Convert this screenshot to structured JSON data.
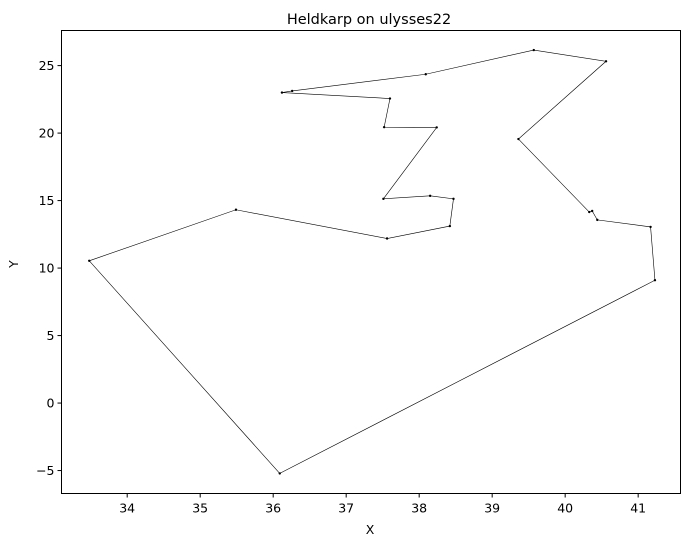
{
  "chart_data": {
    "type": "line",
    "title": "Heldkarp on ulysses22",
    "xlabel": "X",
    "ylabel": "Y",
    "xlim": [
      33.1,
      41.58
    ],
    "ylim": [
      -6.7,
      27.6
    ],
    "xticks": [
      34,
      35,
      36,
      37,
      38,
      39,
      40,
      41
    ],
    "yticks": [
      -5,
      0,
      5,
      10,
      15,
      20,
      25
    ],
    "grid": false,
    "legend": "none",
    "line_color": "#000000",
    "marker": "point",
    "series": [
      {
        "x": [
          36.09,
          41.23,
          41.17,
          40.44,
          40.37,
          40.33,
          39.36,
          40.56,
          39.57,
          38.09,
          36.26,
          36.12,
          37.6,
          37.52,
          38.24,
          37.51,
          38.15,
          38.47,
          38.42,
          37.56,
          35.49,
          33.48,
          36.09
        ],
        "y": [
          -5.21,
          9.1,
          13.05,
          13.57,
          14.23,
          14.15,
          19.56,
          25.32,
          26.15,
          24.36,
          23.12,
          23.0,
          22.56,
          20.44,
          20.42,
          15.13,
          15.35,
          15.13,
          13.11,
          12.19,
          14.32,
          10.54,
          -5.21
        ]
      }
    ]
  }
}
